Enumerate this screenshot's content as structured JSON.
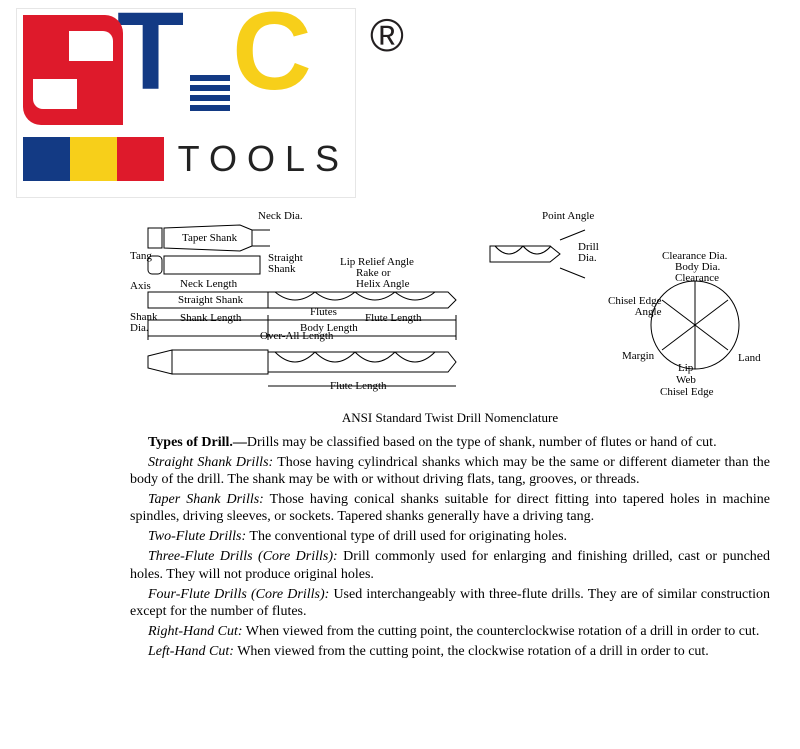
{
  "logo": {
    "tools_text": "TOOLS",
    "registered": "®",
    "colors": {
      "red": "#de1a2b",
      "blue": "#133a84",
      "yellow": "#f7cf1a"
    }
  },
  "diagram": {
    "caption": "ANSI Standard Twist Drill Nomenclature",
    "labels": {
      "neck_dia": "Neck Dia.",
      "taper_shank": "Taper Shank",
      "tang": "Tang",
      "straight_shank_lbl": "Straight\nShank",
      "axis": "Axis",
      "neck_length": "Neck Length",
      "straight_shank": "Straight Shank",
      "shank_dia": "Shank\nDia.",
      "shank_length": "Shank Length",
      "body_length": "Body Length",
      "overall_length": "Over-All Length",
      "flutes": "Flutes",
      "flute_length": "Flute Length",
      "flute_length2": "Flute Length",
      "rake": "Rake or\nHelix Angle",
      "lip_relief": "Lip Relief Angle",
      "point_angle": "Point Angle",
      "drill_dia": "Drill\nDia.",
      "clearance_dia": "Clearance Dia.",
      "body_dia": "Body Dia.\nClearance",
      "chisel_edge_angle": "Chisel Edge\nAngle",
      "margin": "Margin",
      "lip": "Lip",
      "web": "Web",
      "chisel_edge": "Chisel Edge",
      "land": "Land"
    }
  },
  "text": {
    "heading": "Types of Drill.—",
    "heading_tail": "Drills may be classified based on the type of shank, number of flutes or hand of cut.",
    "straight_title": "Straight Shank Drills:",
    "straight_body": " Those having cylindrical shanks which may be the same or different diameter than the body of the drill. The shank may be with or without driving flats, tang, grooves, or threads.",
    "taper_title": "Taper Shank Drills:",
    "taper_body": " Those having conical shanks suitable for direct fitting into tapered holes in machine spindles, driving sleeves, or sockets. Tapered shanks generally have a driving tang.",
    "two_title": "Two-Flute Drills:",
    "two_body": " The conventional type of drill used for originating holes.",
    "three_title": "Three-Flute Drills (Core Drills):",
    "three_body": " Drill commonly used for enlarging and finishing drilled, cast or punched holes. They will not produce original holes.",
    "four_title": "Four-Flute Drills (Core Drills):",
    "four_body": " Used interchangeably with three-flute drills. They are of similar construction except for the number of flutes.",
    "right_title": "Right-Hand Cut:",
    "right_body": " When viewed from the cutting point, the counterclockwise rotation of a drill in order to cut.",
    "left_title": "Left-Hand Cut:",
    "left_body": " When viewed from the cutting point, the clockwise rotation of a drill in order to cut."
  }
}
